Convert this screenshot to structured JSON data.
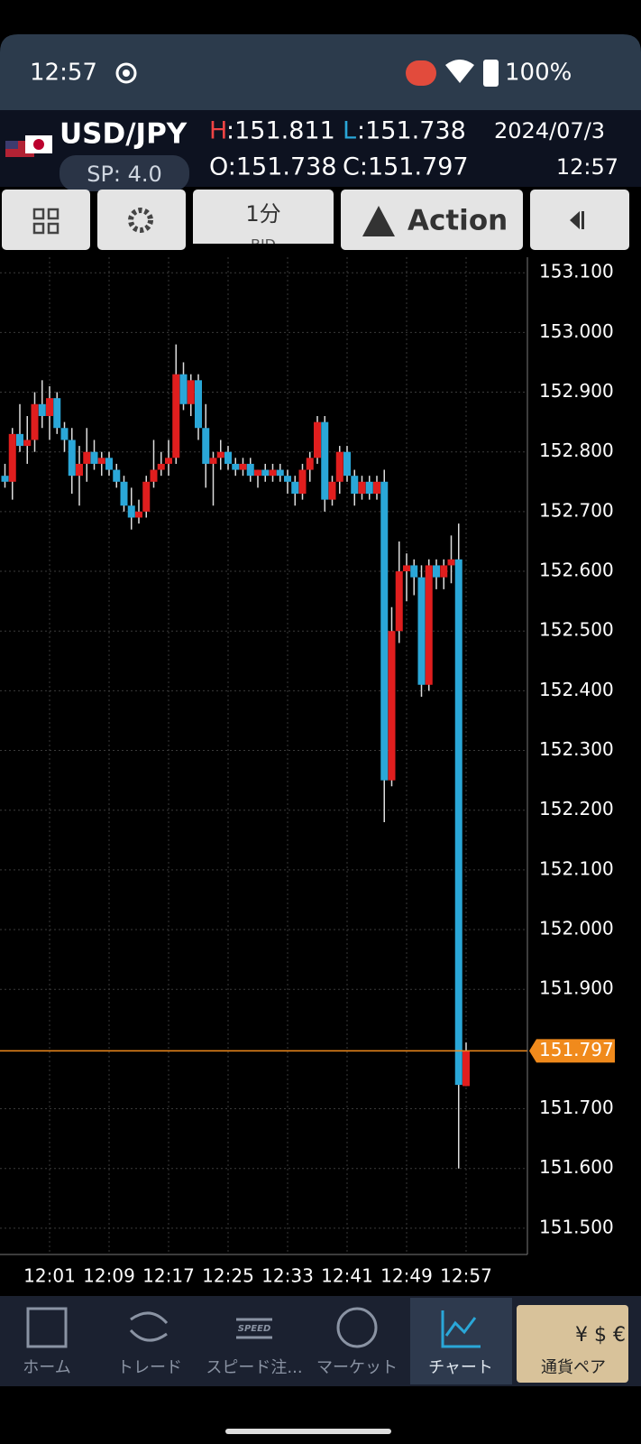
{
  "status_bar": {
    "time": "12:57",
    "battery": "100%"
  },
  "header": {
    "pair": "USD/JPY",
    "spread": "SP: 4.0",
    "high_key": "H",
    "high_text": ":151.811",
    "low_key": "L",
    "low_text": ":151.738",
    "open_text": "O:151.738",
    "close_text": "C:151.797",
    "date": "2024/07/3",
    "time": "12:57"
  },
  "toolbar": {
    "timeframe": "1分",
    "price_side": "BID",
    "action": "Action"
  },
  "nav": {
    "speed_icon": "SPEED",
    "items": [
      "ホーム",
      "トレード",
      "スピード注...",
      "マーケット",
      "チャート",
      "通貨ペア"
    ]
  },
  "chart_data": {
    "type": "candlestick",
    "categories": [
      null,
      null,
      null,
      null,
      null,
      null,
      "12:01",
      null,
      null,
      null,
      null,
      null,
      null,
      null,
      "12:09",
      null,
      null,
      null,
      null,
      null,
      null,
      null,
      "12:17",
      null,
      null,
      null,
      null,
      null,
      null,
      null,
      "12:25",
      null,
      null,
      null,
      null,
      null,
      null,
      null,
      "12:33",
      null,
      null,
      null,
      null,
      null,
      null,
      null,
      "12:41",
      null,
      null,
      null,
      null,
      null,
      null,
      null,
      "12:49",
      null,
      null,
      null,
      null,
      null,
      null,
      null,
      "12:57"
    ],
    "open": [
      152.76,
      152.75,
      152.83,
      152.81,
      152.82,
      152.88,
      152.86,
      152.89,
      152.84,
      152.82,
      152.76,
      152.78,
      152.8,
      152.78,
      152.79,
      152.77,
      152.75,
      152.71,
      152.69,
      152.7,
      152.75,
      152.77,
      152.78,
      152.79,
      152.93,
      152.88,
      152.92,
      152.84,
      152.78,
      152.79,
      152.8,
      152.78,
      152.77,
      152.78,
      152.76,
      152.77,
      152.76,
      152.77,
      152.76,
      152.75,
      152.73,
      152.77,
      152.79,
      152.85,
      152.72,
      152.75,
      152.8,
      152.76,
      152.73,
      152.75,
      152.73,
      152.75,
      152.25,
      152.5,
      152.6,
      152.61,
      152.59,
      152.41,
      152.61,
      152.59,
      152.61,
      152.62,
      151.738
    ],
    "high": [
      152.78,
      152.84,
      152.88,
      152.86,
      152.9,
      152.92,
      152.91,
      152.9,
      152.85,
      152.84,
      152.81,
      152.84,
      152.82,
      152.8,
      152.8,
      152.78,
      152.76,
      152.74,
      152.72,
      152.76,
      152.82,
      152.8,
      152.82,
      152.98,
      152.95,
      152.93,
      152.93,
      152.88,
      152.8,
      152.82,
      152.81,
      152.79,
      152.79,
      152.79,
      152.77,
      152.78,
      152.78,
      152.78,
      152.77,
      152.76,
      152.78,
      152.8,
      152.86,
      152.86,
      152.76,
      152.81,
      152.81,
      152.77,
      152.76,
      152.76,
      152.76,
      152.77,
      152.54,
      152.65,
      152.63,
      152.62,
      152.61,
      152.62,
      152.62,
      152.62,
      152.66,
      152.68,
      151.811
    ],
    "low": [
      152.74,
      152.72,
      152.8,
      152.78,
      152.8,
      152.84,
      152.82,
      152.83,
      152.8,
      152.73,
      152.71,
      152.75,
      152.77,
      152.76,
      152.76,
      152.74,
      152.7,
      152.67,
      152.68,
      152.69,
      152.74,
      152.76,
      152.76,
      152.78,
      152.87,
      152.86,
      152.82,
      152.74,
      152.71,
      152.77,
      152.77,
      152.76,
      152.76,
      152.75,
      152.74,
      152.75,
      152.75,
      152.75,
      152.73,
      152.71,
      152.72,
      152.75,
      152.78,
      152.7,
      152.71,
      152.73,
      152.75,
      152.71,
      152.72,
      152.72,
      152.72,
      152.18,
      152.24,
      152.48,
      152.55,
      152.56,
      152.39,
      152.4,
      152.57,
      152.57,
      152.58,
      151.6,
      151.738
    ],
    "close": [
      152.75,
      152.83,
      152.81,
      152.82,
      152.88,
      152.86,
      152.89,
      152.84,
      152.82,
      152.76,
      152.78,
      152.8,
      152.78,
      152.79,
      152.77,
      152.75,
      152.71,
      152.69,
      152.7,
      152.75,
      152.77,
      152.78,
      152.79,
      152.93,
      152.88,
      152.92,
      152.84,
      152.78,
      152.79,
      152.8,
      152.78,
      152.77,
      152.78,
      152.76,
      152.77,
      152.76,
      152.77,
      152.76,
      152.75,
      152.73,
      152.77,
      152.79,
      152.85,
      152.72,
      152.75,
      152.8,
      152.76,
      152.73,
      152.75,
      152.73,
      152.75,
      152.25,
      152.5,
      152.6,
      152.61,
      152.59,
      152.41,
      152.61,
      152.59,
      152.61,
      152.62,
      151.74,
      151.797
    ],
    "up_color": "#e01e1e",
    "down_color": "#2aa7d8",
    "ylim": [
      151.456,
      153.126
    ],
    "yticks": [
      {
        "value": 153.1,
        "label": "153.100"
      },
      {
        "value": 153.0,
        "label": "153.000"
      },
      {
        "value": 152.9,
        "label": "152.900"
      },
      {
        "value": 152.8,
        "label": "152.800"
      },
      {
        "value": 152.7,
        "label": "152.700"
      },
      {
        "value": 152.6,
        "label": "152.600"
      },
      {
        "value": 152.5,
        "label": "152.500"
      },
      {
        "value": 152.4,
        "label": "152.400"
      },
      {
        "value": 152.3,
        "label": "152.300"
      },
      {
        "value": 152.2,
        "label": "152.200"
      },
      {
        "value": 152.1,
        "label": "152.100"
      },
      {
        "value": 152.0,
        "label": "152.000"
      },
      {
        "value": 151.9,
        "label": "151.900"
      },
      {
        "value": 151.7,
        "label": "151.700"
      },
      {
        "value": 151.6,
        "label": "151.600"
      },
      {
        "value": 151.5,
        "label": "151.500"
      }
    ],
    "current_price": 151.797,
    "current_color": "#f08a1c",
    "grid": true
  }
}
